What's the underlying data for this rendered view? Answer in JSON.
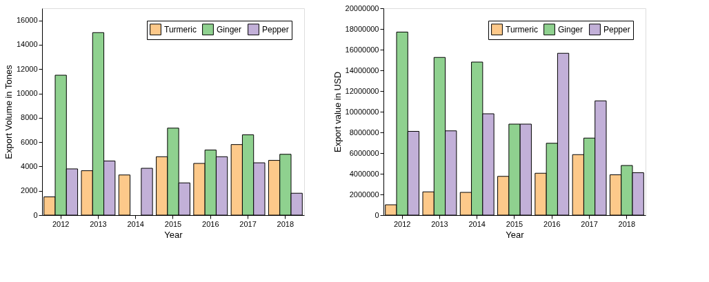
{
  "chart_data": [
    {
      "type": "bar",
      "xlabel": "Year",
      "ylabel": "Export Volume in Tones",
      "categories": [
        "2012",
        "2013",
        "2014",
        "2015",
        "2016",
        "2017",
        "2018"
      ],
      "series": [
        {
          "name": "Turmeric",
          "color": "#fdc98a",
          "values": [
            1500,
            3650,
            3300,
            4800,
            4250,
            5800,
            4500
          ]
        },
        {
          "name": "Ginger",
          "color": "#8fd18f",
          "values": [
            11500,
            15000,
            null,
            7150,
            5350,
            6600,
            5000
          ]
        },
        {
          "name": "Pepper",
          "color": "#c2b0d8",
          "values": [
            3800,
            4450,
            3850,
            2650,
            4800,
            4300,
            1800
          ]
        }
      ],
      "ylim": [
        0,
        17000
      ],
      "yticks": [
        0,
        2000,
        4000,
        6000,
        8000,
        10000,
        12000,
        14000,
        16000
      ],
      "grid": false,
      "legend": "top right"
    },
    {
      "type": "bar",
      "xlabel": "Year",
      "ylabel": "Export value in USD",
      "categories": [
        "2012",
        "2013",
        "2014",
        "2015",
        "2016",
        "2017",
        "2018"
      ],
      "series": [
        {
          "name": "Turmeric",
          "color": "#fdc98a",
          "values": [
            1000000,
            2250000,
            2200000,
            3750000,
            4050000,
            5850000,
            3900000
          ]
        },
        {
          "name": "Ginger",
          "color": "#8fd18f",
          "values": [
            17700000,
            15250000,
            14800000,
            8800000,
            6950000,
            7450000,
            4800000
          ]
        },
        {
          "name": "Pepper",
          "color": "#c2b0d8",
          "values": [
            8100000,
            8150000,
            9800000,
            8800000,
            15650000,
            11050000,
            4100000
          ]
        }
      ],
      "ylim": [
        0,
        20000000
      ],
      "yticks": [
        0,
        2000000,
        4000000,
        6000000,
        8000000,
        10000000,
        12000000,
        14000000,
        16000000,
        18000000,
        20000000
      ],
      "grid": false,
      "legend": "top right"
    }
  ]
}
